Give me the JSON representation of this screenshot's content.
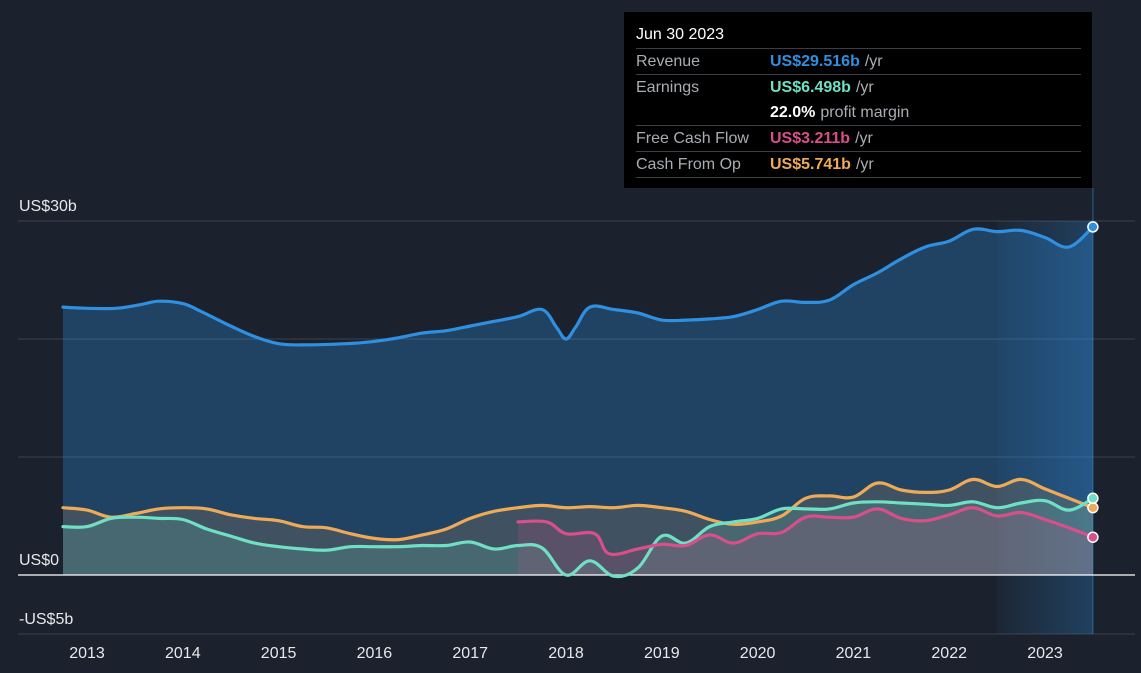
{
  "tooltip": {
    "date": "Jun 30 2023",
    "rows": [
      {
        "name": "Revenue",
        "value": "US$29.516b",
        "unit": "/yr",
        "color": "#2f8fe0"
      },
      {
        "name": "Earnings",
        "value": "US$6.498b",
        "unit": "/yr",
        "color": "#6fe0c4"
      },
      {
        "name": "Free Cash Flow",
        "value": "US$3.211b",
        "unit": "/yr",
        "color": "#d94f8a"
      },
      {
        "name": "Cash From Op",
        "value": "US$5.741b",
        "unit": "/yr",
        "color": "#efaa58"
      }
    ],
    "margin_value": "22.0%",
    "margin_label": "profit margin"
  },
  "chart_data": {
    "type": "line",
    "ylim": [
      -5,
      30
    ],
    "y_tick_labels": [
      {
        "value": 30,
        "label": "US$30b"
      },
      {
        "value": 0,
        "label": "US$0"
      },
      {
        "value": -5,
        "label": "-US$5b"
      }
    ],
    "x_ticks": [
      2013,
      2014,
      2015,
      2016,
      2017,
      2018,
      2019,
      2020,
      2021,
      2022,
      2023
    ],
    "xlim": [
      2012.6,
      2023.9
    ],
    "series": [
      {
        "name": "Revenue",
        "color": "#2f8fe0",
        "points": [
          [
            2012.75,
            22.7
          ],
          [
            2013.0,
            22.6
          ],
          [
            2013.3,
            22.6
          ],
          [
            2013.55,
            22.9
          ],
          [
            2013.75,
            23.2
          ],
          [
            2014.0,
            23.0
          ],
          [
            2014.2,
            22.3
          ],
          [
            2014.5,
            21.1
          ],
          [
            2014.75,
            20.2
          ],
          [
            2015.0,
            19.6
          ],
          [
            2015.25,
            19.5
          ],
          [
            2015.7,
            19.6
          ],
          [
            2016.0,
            19.8
          ],
          [
            2016.25,
            20.1
          ],
          [
            2016.5,
            20.5
          ],
          [
            2016.75,
            20.7
          ],
          [
            2017.0,
            21.1
          ],
          [
            2017.25,
            21.5
          ],
          [
            2017.5,
            21.9
          ],
          [
            2017.75,
            22.5
          ],
          [
            2017.9,
            21.0
          ],
          [
            2018.0,
            20.0
          ],
          [
            2018.1,
            21.0
          ],
          [
            2018.25,
            22.7
          ],
          [
            2018.5,
            22.5
          ],
          [
            2018.75,
            22.2
          ],
          [
            2019.0,
            21.6
          ],
          [
            2019.25,
            21.6
          ],
          [
            2019.5,
            21.7
          ],
          [
            2019.75,
            21.9
          ],
          [
            2020.0,
            22.5
          ],
          [
            2020.25,
            23.2
          ],
          [
            2020.5,
            23.1
          ],
          [
            2020.75,
            23.3
          ],
          [
            2021.0,
            24.6
          ],
          [
            2021.25,
            25.6
          ],
          [
            2021.5,
            26.8
          ],
          [
            2021.75,
            27.8
          ],
          [
            2022.0,
            28.3
          ],
          [
            2022.25,
            29.3
          ],
          [
            2022.5,
            29.1
          ],
          [
            2022.75,
            29.2
          ],
          [
            2023.0,
            28.6
          ],
          [
            2023.25,
            27.8
          ],
          [
            2023.5,
            29.5
          ]
        ]
      },
      {
        "name": "Cash From Op",
        "color": "#efaa58",
        "points": [
          [
            2012.75,
            5.7
          ],
          [
            2013.0,
            5.5
          ],
          [
            2013.25,
            4.9
          ],
          [
            2013.5,
            5.2
          ],
          [
            2013.75,
            5.6
          ],
          [
            2014.0,
            5.7
          ],
          [
            2014.25,
            5.6
          ],
          [
            2014.5,
            5.1
          ],
          [
            2014.75,
            4.8
          ],
          [
            2015.0,
            4.6
          ],
          [
            2015.25,
            4.1
          ],
          [
            2015.5,
            4.0
          ],
          [
            2015.75,
            3.5
          ],
          [
            2016.0,
            3.1
          ],
          [
            2016.25,
            3.0
          ],
          [
            2016.5,
            3.4
          ],
          [
            2016.75,
            3.9
          ],
          [
            2017.0,
            4.8
          ],
          [
            2017.25,
            5.4
          ],
          [
            2017.5,
            5.7
          ],
          [
            2017.75,
            5.9
          ],
          [
            2018.0,
            5.7
          ],
          [
            2018.25,
            5.8
          ],
          [
            2018.5,
            5.7
          ],
          [
            2018.75,
            5.9
          ],
          [
            2019.0,
            5.7
          ],
          [
            2019.25,
            5.4
          ],
          [
            2019.5,
            4.7
          ],
          [
            2019.75,
            4.3
          ],
          [
            2020.0,
            4.5
          ],
          [
            2020.25,
            5.0
          ],
          [
            2020.5,
            6.5
          ],
          [
            2020.75,
            6.7
          ],
          [
            2021.0,
            6.6
          ],
          [
            2021.25,
            7.8
          ],
          [
            2021.5,
            7.2
          ],
          [
            2021.75,
            7.0
          ],
          [
            2022.0,
            7.2
          ],
          [
            2022.25,
            8.1
          ],
          [
            2022.5,
            7.5
          ],
          [
            2022.75,
            8.1
          ],
          [
            2023.0,
            7.3
          ],
          [
            2023.25,
            6.5
          ],
          [
            2023.5,
            5.7
          ]
        ]
      },
      {
        "name": "Earnings",
        "color": "#6fe0c4",
        "points": [
          [
            2012.75,
            4.1
          ],
          [
            2013.0,
            4.1
          ],
          [
            2013.25,
            4.8
          ],
          [
            2013.5,
            4.9
          ],
          [
            2013.75,
            4.8
          ],
          [
            2014.0,
            4.7
          ],
          [
            2014.25,
            3.9
          ],
          [
            2014.5,
            3.3
          ],
          [
            2014.75,
            2.7
          ],
          [
            2015.0,
            2.4
          ],
          [
            2015.25,
            2.2
          ],
          [
            2015.5,
            2.1
          ],
          [
            2015.75,
            2.4
          ],
          [
            2016.0,
            2.4
          ],
          [
            2016.25,
            2.4
          ],
          [
            2016.5,
            2.5
          ],
          [
            2016.75,
            2.5
          ],
          [
            2017.0,
            2.8
          ],
          [
            2017.25,
            2.2
          ],
          [
            2017.5,
            2.5
          ],
          [
            2017.75,
            2.3
          ],
          [
            2018.0,
            0.0
          ],
          [
            2018.25,
            1.2
          ],
          [
            2018.5,
            -0.1
          ],
          [
            2018.75,
            0.6
          ],
          [
            2019.0,
            3.3
          ],
          [
            2019.25,
            2.7
          ],
          [
            2019.5,
            4.1
          ],
          [
            2019.75,
            4.5
          ],
          [
            2020.0,
            4.8
          ],
          [
            2020.25,
            5.6
          ],
          [
            2020.5,
            5.6
          ],
          [
            2020.75,
            5.6
          ],
          [
            2021.0,
            6.1
          ],
          [
            2021.25,
            6.2
          ],
          [
            2021.5,
            6.1
          ],
          [
            2021.75,
            6.0
          ],
          [
            2022.0,
            5.9
          ],
          [
            2022.25,
            6.2
          ],
          [
            2022.5,
            5.7
          ],
          [
            2022.75,
            6.1
          ],
          [
            2023.0,
            6.3
          ],
          [
            2023.25,
            5.5
          ],
          [
            2023.5,
            6.5
          ]
        ]
      },
      {
        "name": "Free Cash Flow",
        "color": "#d94f8a",
        "points": [
          [
            2017.5,
            4.5
          ],
          [
            2017.8,
            4.5
          ],
          [
            2018.0,
            3.5
          ],
          [
            2018.3,
            3.5
          ],
          [
            2018.45,
            1.8
          ],
          [
            2018.75,
            2.2
          ],
          [
            2019.0,
            2.6
          ],
          [
            2019.25,
            2.5
          ],
          [
            2019.5,
            3.4
          ],
          [
            2019.75,
            2.7
          ],
          [
            2020.0,
            3.5
          ],
          [
            2020.25,
            3.6
          ],
          [
            2020.5,
            4.9
          ],
          [
            2020.75,
            4.9
          ],
          [
            2021.0,
            4.9
          ],
          [
            2021.25,
            5.6
          ],
          [
            2021.5,
            4.8
          ],
          [
            2021.75,
            4.6
          ],
          [
            2022.0,
            5.1
          ],
          [
            2022.25,
            5.7
          ],
          [
            2022.5,
            5.0
          ],
          [
            2022.75,
            5.3
          ],
          [
            2023.0,
            4.7
          ],
          [
            2023.25,
            4.0
          ],
          [
            2023.5,
            3.2
          ]
        ]
      }
    ]
  }
}
